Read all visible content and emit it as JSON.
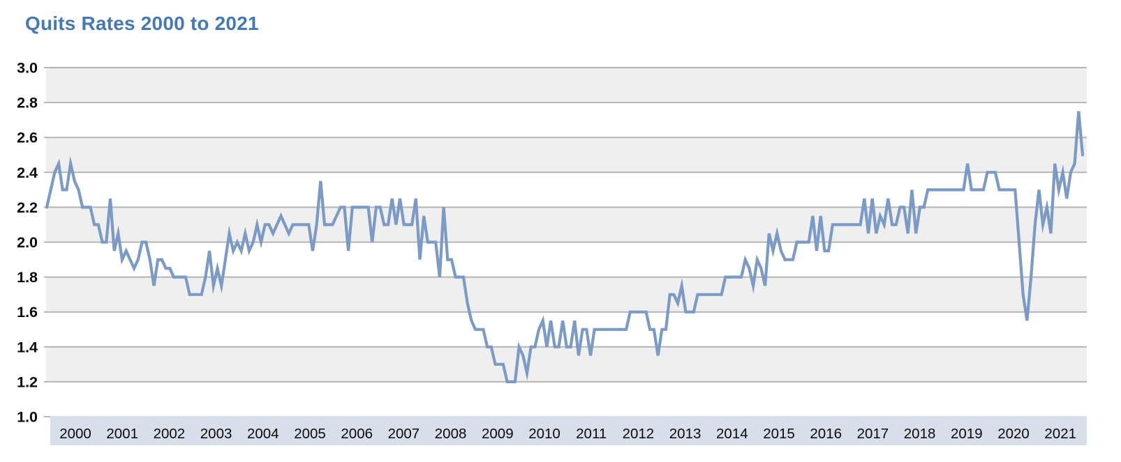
{
  "header": {
    "title": "Quits Rates 2000 to 2021"
  },
  "colors": {
    "title_text": "#4579B4",
    "line": "#7B9AC5",
    "plot_band_fill": "#EFEFEF",
    "gridline": "#B5B5B5",
    "x_axis_band_fill": "#D9DEEB",
    "label_text": "#0A0A0A",
    "background": "#FFFFFF"
  },
  "chart_data": {
    "type": "line",
    "title": "Quits Rates 2000 to 2021",
    "xlabel": "",
    "ylabel": "",
    "frequency": "monthly",
    "period_start": "2000",
    "period_end": "2021",
    "ylim": [
      1.0,
      3.0
    ],
    "y_ticks": [
      "3.0",
      "2.8",
      "2.6",
      "2.4",
      "2.2",
      "2.0",
      "1.8",
      "1.6",
      "1.4",
      "1.2",
      "1.0"
    ],
    "x_labels": [
      "2000",
      "2001",
      "2002",
      "2003",
      "2004",
      "2005",
      "2006",
      "2007",
      "2008",
      "2009",
      "2010",
      "2011",
      "2012",
      "2013",
      "2014",
      "2015",
      "2016",
      "2017",
      "2018",
      "2019",
      "2020",
      "2021"
    ],
    "grid": "horizontal",
    "legend": "none",
    "shaded_bands": [
      [
        2.8,
        3.0
      ],
      [
        2.4,
        2.6
      ],
      [
        2.0,
        2.2
      ],
      [
        1.6,
        1.8
      ],
      [
        1.2,
        1.4
      ]
    ],
    "series": [
      {
        "name": "Quits rate",
        "values": [
          2.2,
          2.3,
          2.4,
          2.45,
          2.3,
          2.3,
          2.45,
          2.35,
          2.3,
          2.2,
          2.2,
          2.2,
          2.1,
          2.1,
          2.0,
          2.0,
          2.25,
          1.95,
          2.05,
          1.9,
          1.95,
          1.9,
          1.85,
          1.9,
          2.0,
          2.0,
          1.9,
          1.75,
          1.9,
          1.9,
          1.85,
          1.85,
          1.8,
          1.8,
          1.8,
          1.8,
          1.7,
          1.7,
          1.7,
          1.7,
          1.8,
          1.95,
          1.75,
          1.85,
          1.75,
          1.9,
          2.05,
          1.95,
          2.0,
          1.95,
          2.05,
          1.95,
          2.0,
          2.1,
          2.0,
          2.1,
          2.1,
          2.05,
          2.1,
          2.15,
          2.1,
          2.05,
          2.1,
          2.1,
          2.1,
          2.1,
          2.1,
          1.95,
          2.1,
          2.35,
          2.1,
          2.1,
          2.1,
          2.15,
          2.2,
          2.2,
          1.95,
          2.2,
          2.2,
          2.2,
          2.2,
          2.2,
          2.0,
          2.2,
          2.2,
          2.1,
          2.1,
          2.25,
          2.1,
          2.25,
          2.1,
          2.1,
          2.1,
          2.25,
          1.9,
          2.15,
          2.0,
          2.0,
          2.0,
          1.8,
          2.2,
          1.9,
          1.9,
          1.8,
          1.8,
          1.8,
          1.65,
          1.55,
          1.5,
          1.5,
          1.5,
          1.4,
          1.4,
          1.3,
          1.3,
          1.3,
          1.2,
          1.2,
          1.2,
          1.4,
          1.35,
          1.25,
          1.4,
          1.4,
          1.5,
          1.55,
          1.4,
          1.55,
          1.4,
          1.4,
          1.55,
          1.4,
          1.4,
          1.55,
          1.35,
          1.5,
          1.5,
          1.35,
          1.5,
          1.5,
          1.5,
          1.5,
          1.5,
          1.5,
          1.5,
          1.5,
          1.5,
          1.6,
          1.6,
          1.6,
          1.6,
          1.6,
          1.5,
          1.5,
          1.35,
          1.5,
          1.5,
          1.7,
          1.7,
          1.65,
          1.75,
          1.6,
          1.6,
          1.6,
          1.7,
          1.7,
          1.7,
          1.7,
          1.7,
          1.7,
          1.7,
          1.8,
          1.8,
          1.8,
          1.8,
          1.8,
          1.9,
          1.85,
          1.75,
          1.9,
          1.85,
          1.75,
          2.05,
          1.95,
          2.05,
          1.95,
          1.9,
          1.9,
          1.9,
          2.0,
          2.0,
          2.0,
          2.0,
          2.15,
          1.95,
          2.15,
          1.95,
          1.95,
          2.1,
          2.1,
          2.1,
          2.1,
          2.1,
          2.1,
          2.1,
          2.1,
          2.25,
          2.05,
          2.25,
          2.05,
          2.15,
          2.1,
          2.25,
          2.1,
          2.1,
          2.2,
          2.2,
          2.05,
          2.3,
          2.05,
          2.2,
          2.2,
          2.3,
          2.3,
          2.3,
          2.3,
          2.3,
          2.3,
          2.3,
          2.3,
          2.3,
          2.3,
          2.45,
          2.3,
          2.3,
          2.3,
          2.3,
          2.4,
          2.4,
          2.4,
          2.3,
          2.3,
          2.3,
          2.3,
          2.3,
          2.0,
          1.7,
          1.55,
          1.8,
          2.1,
          2.3,
          2.1,
          2.2,
          2.05,
          2.45,
          2.3,
          2.4,
          2.25,
          2.4,
          2.45,
          2.75,
          2.5
        ]
      }
    ]
  },
  "layout_note": "alternating shaded horizontal bands; year labels sit on tinted band along x-axis"
}
